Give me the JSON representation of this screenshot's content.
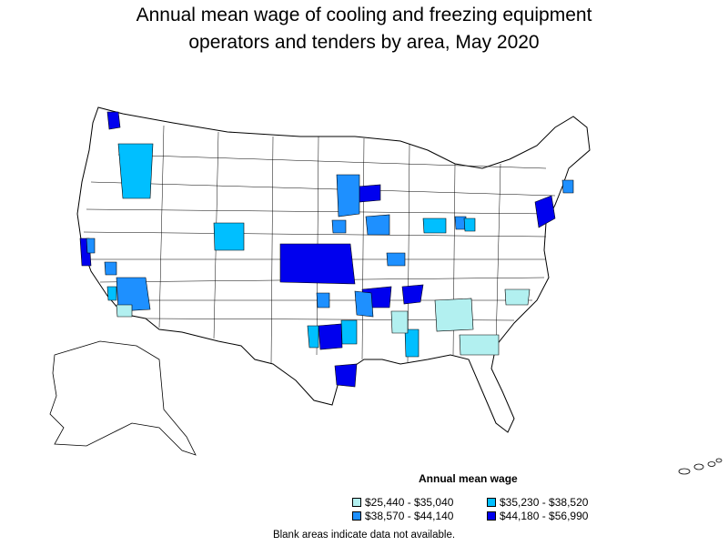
{
  "title": {
    "line1": "Annual mean wage of cooling and freezing equipment",
    "line2": "operators and tenders by area, May 2020"
  },
  "legend": {
    "title": "Annual mean wage",
    "items": [
      {
        "label": "$25,440 - $35,040",
        "color": "#b2f0f0"
      },
      {
        "label": "$35,230 - $38,520",
        "color": "#00bfff"
      },
      {
        "label": "$38,570 - $44,140",
        "color": "#1e90ff"
      },
      {
        "label": "$44,180 - $56,990",
        "color": "#0000ee"
      }
    ]
  },
  "note": "Blank areas indicate data not available."
}
